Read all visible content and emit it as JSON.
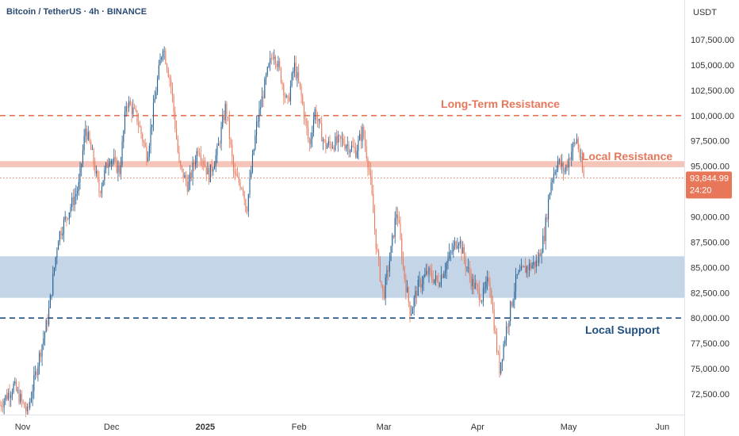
{
  "chart_data": {
    "type": "candlestick",
    "title": "Bitcoin / TetherUS · 4h · BINANCE",
    "currency": "USDT",
    "ylim": [
      70000,
      110500
    ],
    "yticks": [
      {
        "value": 107500,
        "label": "107,500.00"
      },
      {
        "value": 105000,
        "label": "105,000.00"
      },
      {
        "value": 102500,
        "label": "102,500.00"
      },
      {
        "value": 100000,
        "label": "100,000.00"
      },
      {
        "value": 97500,
        "label": "97,500.00"
      },
      {
        "value": 95000,
        "label": "95,000.00"
      },
      {
        "value": 92500,
        "label": "92,500.00"
      },
      {
        "value": 90000,
        "label": "90,000.00"
      },
      {
        "value": 87500,
        "label": "87,500.00"
      },
      {
        "value": 85000,
        "label": "85,000.00"
      },
      {
        "value": 82500,
        "label": "82,500.00"
      },
      {
        "value": 80000,
        "label": "80,000.00"
      },
      {
        "value": 77500,
        "label": "77,500.00"
      },
      {
        "value": 75000,
        "label": "75,000.00"
      },
      {
        "value": 72500,
        "label": "72,500.00"
      }
    ],
    "xticks": [
      {
        "label": "Nov",
        "pos": 0.033,
        "bold": false
      },
      {
        "label": "Dec",
        "pos": 0.163,
        "bold": false
      },
      {
        "label": "2025",
        "pos": 0.3,
        "bold": true
      },
      {
        "label": "Feb",
        "pos": 0.437,
        "bold": false
      },
      {
        "label": "Mar",
        "pos": 0.561,
        "bold": false
      },
      {
        "label": "Apr",
        "pos": 0.698,
        "bold": false
      },
      {
        "label": "May",
        "pos": 0.831,
        "bold": false
      },
      {
        "label": "Jun",
        "pos": 0.968,
        "bold": false
      }
    ],
    "last_price": {
      "value": 93844.99,
      "label": "93,844.99",
      "countdown": "24:20"
    },
    "levels": [
      {
        "name": "Long-Term Resistance",
        "type": "dashed-line",
        "value": 100000,
        "color": "#e8775a"
      },
      {
        "name": "Local Resistance",
        "type": "band",
        "low": 94900,
        "high": 95500,
        "color": "#f4b6a8"
      },
      {
        "name": "Local Support Zone",
        "type": "band",
        "low": 82000,
        "high": 86100,
        "color": "#a9c3dc"
      },
      {
        "name": "Local Support",
        "type": "dashed-line",
        "value": 80000,
        "color": "#1f4f80"
      }
    ],
    "annotations": [
      {
        "text": "Long-Term Resistance",
        "color": "#e8775a"
      },
      {
        "text": "Local Resistance",
        "color": "#e8775a"
      },
      {
        "text": "Local Support",
        "color": "#1f4f80"
      }
    ],
    "trend": {
      "description": "Approximate 4h price path of BTC/USDT (data units, time as fraction of plot width)",
      "points": [
        [
          0.0,
          71400
        ],
        [
          0.02,
          73300
        ],
        [
          0.04,
          70600
        ],
        [
          0.055,
          75500
        ],
        [
          0.07,
          80000
        ],
        [
          0.085,
          88000
        ],
        [
          0.1,
          90500
        ],
        [
          0.115,
          93000
        ],
        [
          0.125,
          98800
        ],
        [
          0.135,
          96000
        ],
        [
          0.145,
          92500
        ],
        [
          0.16,
          96000
        ],
        [
          0.175,
          94500
        ],
        [
          0.185,
          101500
        ],
        [
          0.2,
          99800
        ],
        [
          0.215,
          96000
        ],
        [
          0.228,
          102500
        ],
        [
          0.238,
          107000
        ],
        [
          0.25,
          103000
        ],
        [
          0.262,
          95000
        ],
        [
          0.275,
          93000
        ],
        [
          0.29,
          97000
        ],
        [
          0.305,
          94000
        ],
        [
          0.318,
          96500
        ],
        [
          0.33,
          101000
        ],
        [
          0.342,
          94000
        ],
        [
          0.355,
          93000
        ],
        [
          0.36,
          90500
        ],
        [
          0.375,
          99000
        ],
        [
          0.39,
          104000
        ],
        [
          0.4,
          106500
        ],
        [
          0.41,
          104000
        ],
        [
          0.42,
          101000
        ],
        [
          0.43,
          105000
        ],
        [
          0.44,
          102000
        ],
        [
          0.452,
          97000
        ],
        [
          0.46,
          100500
        ],
        [
          0.475,
          97000
        ],
        [
          0.5,
          97500
        ],
        [
          0.52,
          96500
        ],
        [
          0.53,
          98500
        ],
        [
          0.54,
          94500
        ],
        [
          0.55,
          87000
        ],
        [
          0.56,
          82000
        ],
        [
          0.57,
          86000
        ],
        [
          0.58,
          90800
        ],
        [
          0.59,
          84500
        ],
        [
          0.6,
          80500
        ],
        [
          0.61,
          83000
        ],
        [
          0.625,
          84500
        ],
        [
          0.64,
          83500
        ],
        [
          0.655,
          85800
        ],
        [
          0.67,
          88000
        ],
        [
          0.68,
          85500
        ],
        [
          0.69,
          83500
        ],
        [
          0.705,
          82000
        ],
        [
          0.715,
          84000
        ],
        [
          0.725,
          77500
        ],
        [
          0.73,
          75000
        ],
        [
          0.74,
          79000
        ],
        [
          0.755,
          84000
        ],
        [
          0.77,
          85000
        ],
        [
          0.785,
          85500
        ],
        [
          0.795,
          88000
        ],
        [
          0.805,
          93500
        ],
        [
          0.815,
          95500
        ],
        [
          0.825,
          94500
        ],
        [
          0.835,
          96500
        ],
        [
          0.843,
          97700
        ],
        [
          0.85,
          94800
        ],
        [
          0.853,
          93845
        ]
      ]
    }
  }
}
